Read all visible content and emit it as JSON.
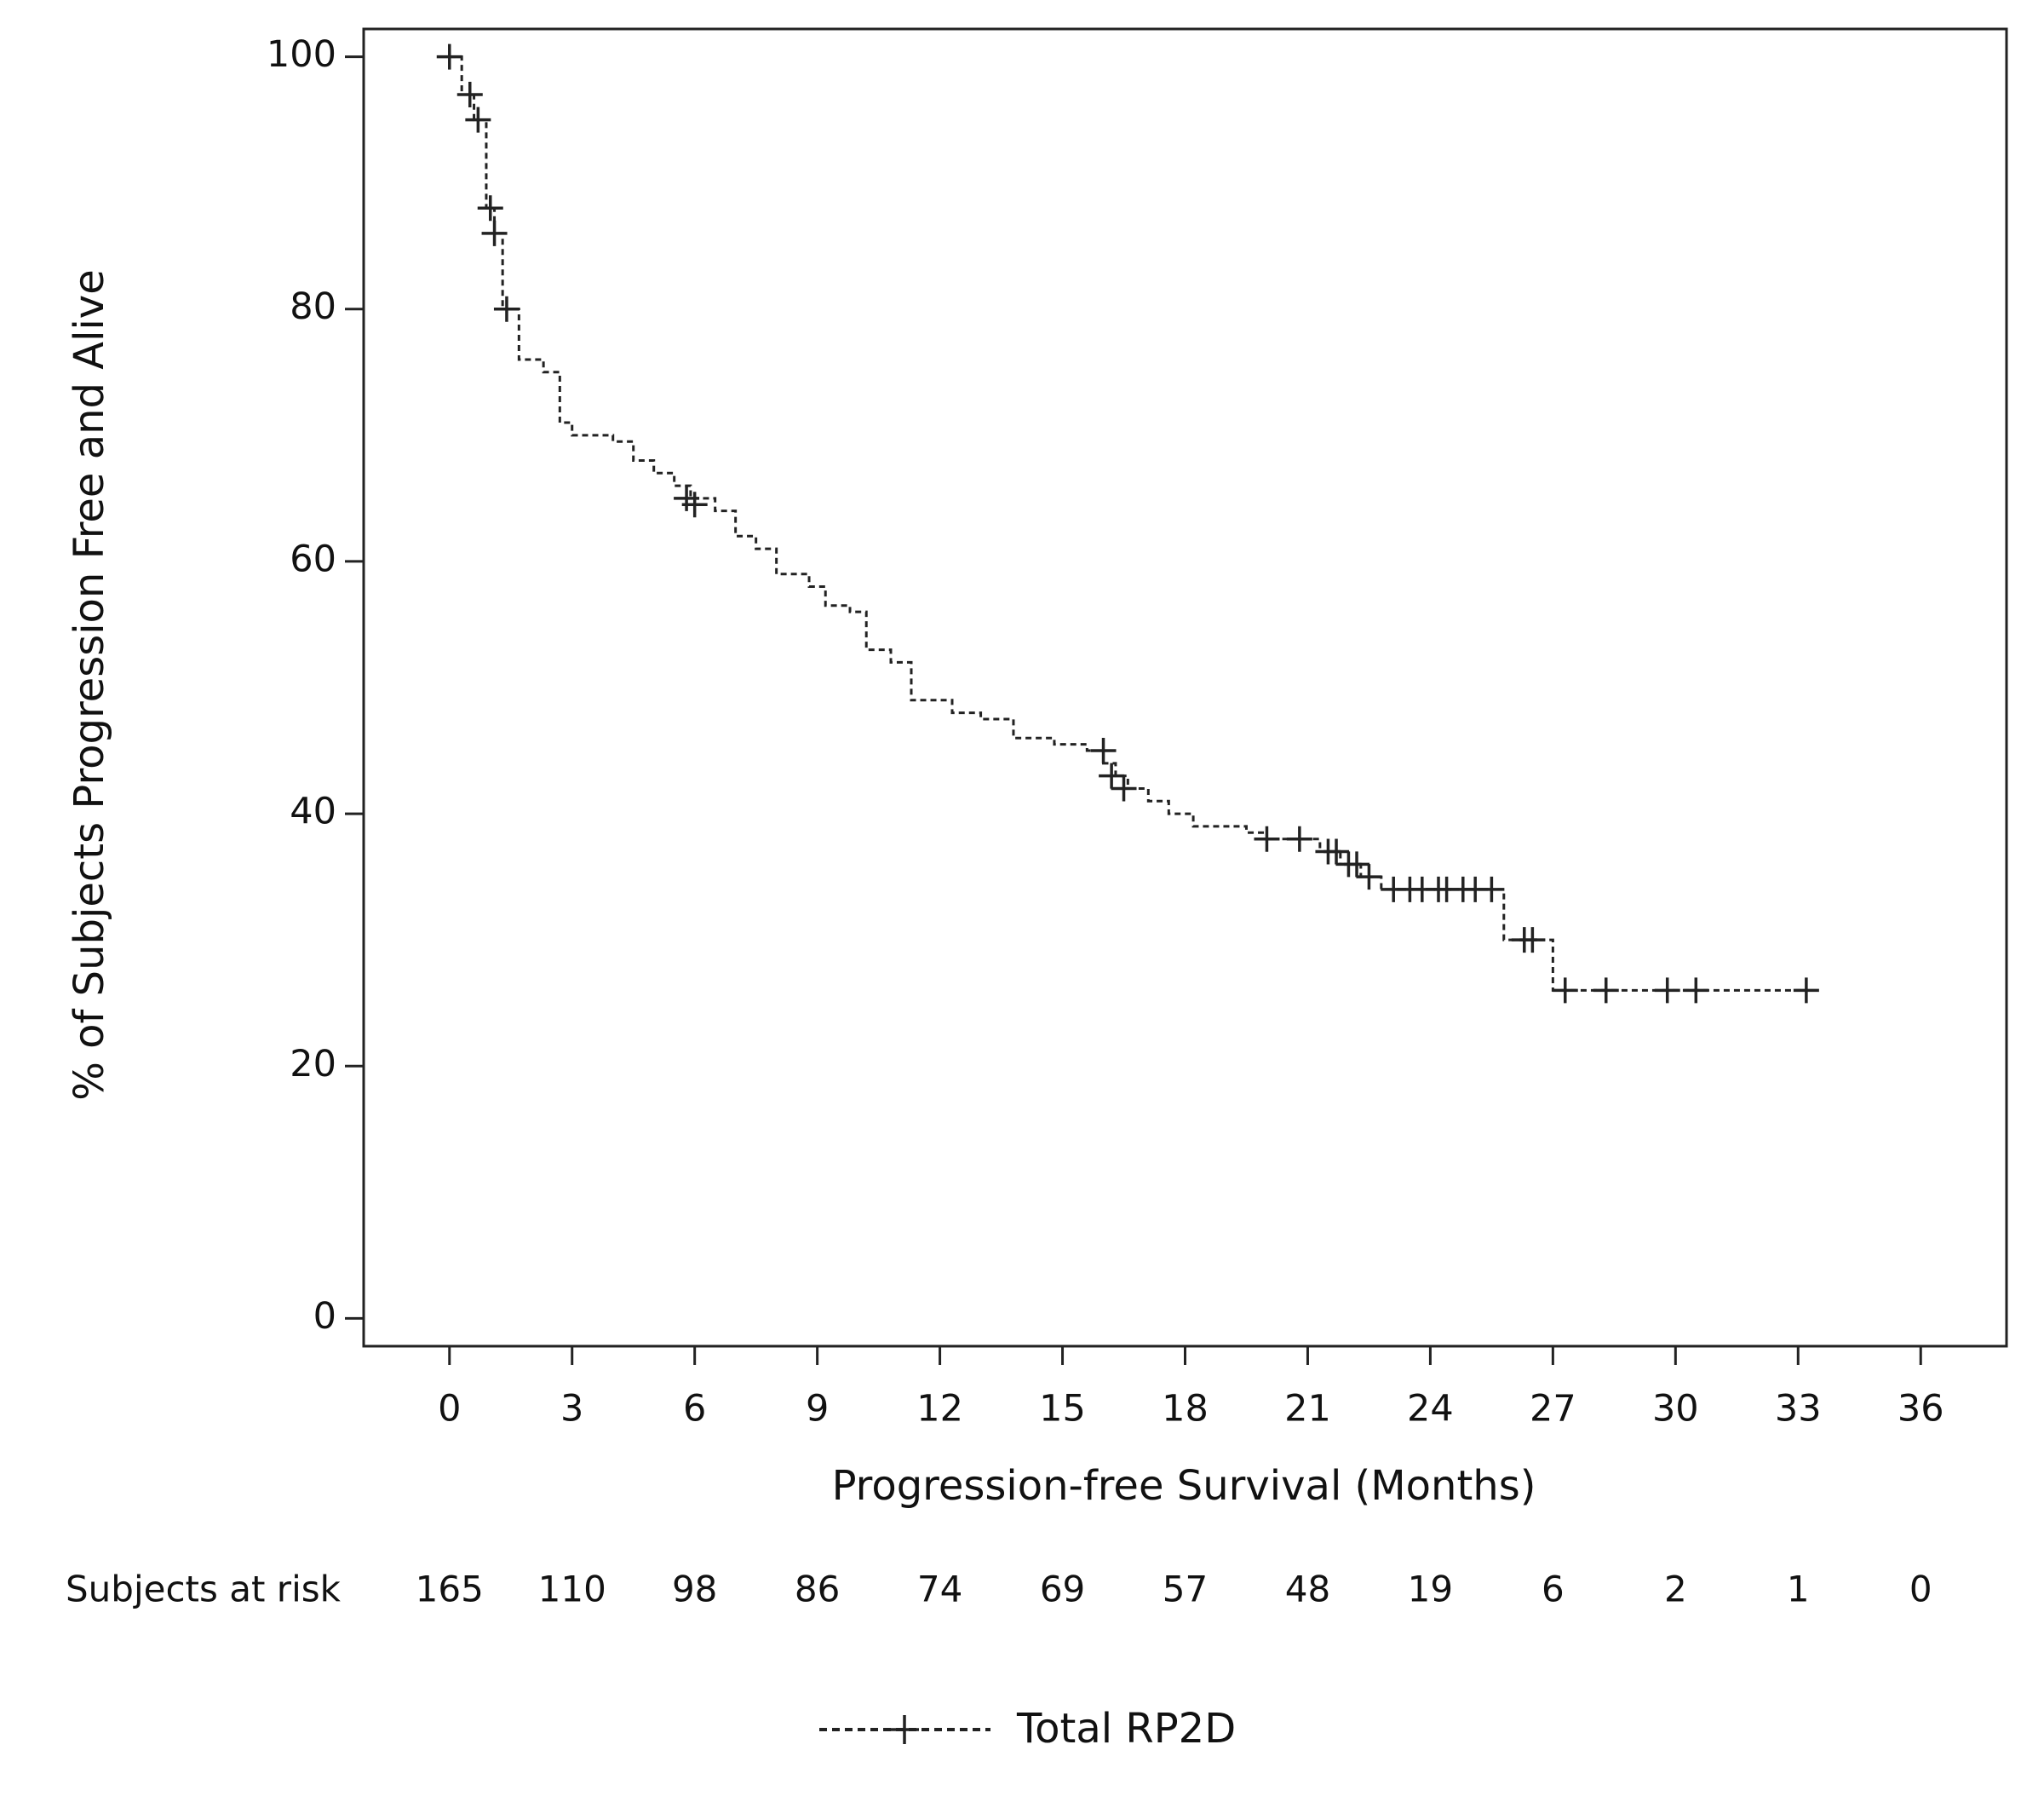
{
  "chart_data": {
    "type": "km",
    "y_label": "% of Subjects Progression Free and Alive",
    "x_label": "Progression-free Survival (Months)",
    "xlim": [
      -2.1,
      38.1
    ],
    "ylim": [
      -2.2,
      102.2
    ],
    "xticks": [
      0,
      3,
      6,
      9,
      12,
      15,
      18,
      21,
      24,
      27,
      30,
      33,
      36
    ],
    "yticks": [
      0,
      20,
      40,
      60,
      80,
      100
    ],
    "series": [
      {
        "name": "Total RP2D",
        "color": "#222222",
        "x": [
          0,
          0.3,
          0.6,
          0.9,
          1.1,
          1.3,
          1.7,
          2.3,
          2.7,
          3.0,
          4.0,
          4.5,
          5.0,
          5.5,
          5.9,
          6.5,
          7.0,
          7.5,
          8.0,
          8.8,
          9.2,
          9.8,
          10.2,
          10.8,
          11.3,
          12.3,
          13.0,
          13.8,
          14.8,
          15.6,
          16.0,
          16.3,
          16.6,
          17.1,
          17.6,
          18.2,
          19.5,
          20.0,
          21.3,
          21.8,
          22.3,
          22.8,
          25.8,
          27.0,
          33.2
        ],
        "values": [
          100,
          97,
          95,
          88,
          86,
          80,
          76,
          75,
          71,
          70,
          69.5,
          68,
          67,
          66,
          65,
          64,
          62,
          61,
          59,
          58,
          56.5,
          56,
          53,
          52,
          49,
          48,
          47.5,
          46,
          45.5,
          45,
          44,
          43,
          42,
          41,
          40,
          39,
          38.5,
          38,
          37,
          36,
          35,
          34,
          30,
          26,
          26
        ],
        "censor_x": [
          0,
          0.5,
          0.7,
          1.0,
          1.1,
          1.4,
          5.8,
          6.0,
          16.0,
          16.2,
          16.5,
          20.0,
          20.8,
          21.5,
          21.7,
          22.0,
          22.2,
          22.5,
          23.1,
          23.5,
          23.8,
          24.2,
          24.4,
          24.8,
          25.1,
          25.5,
          26.3,
          26.5,
          27.3,
          28.3,
          29.8,
          30.5,
          33.2
        ],
        "censor_values": [
          100,
          97,
          95,
          88,
          86,
          80,
          65,
          64.5,
          45,
          43,
          42,
          38,
          38,
          37,
          37,
          36,
          36,
          35,
          34,
          34,
          34,
          34,
          34,
          34,
          34,
          34,
          30,
          30,
          26,
          26,
          26,
          26,
          26
        ]
      }
    ],
    "risk_table": {
      "label": "Subjects at risk",
      "values": [
        165,
        110,
        98,
        86,
        74,
        69,
        57,
        48,
        19,
        6,
        2,
        1,
        0
      ]
    }
  }
}
